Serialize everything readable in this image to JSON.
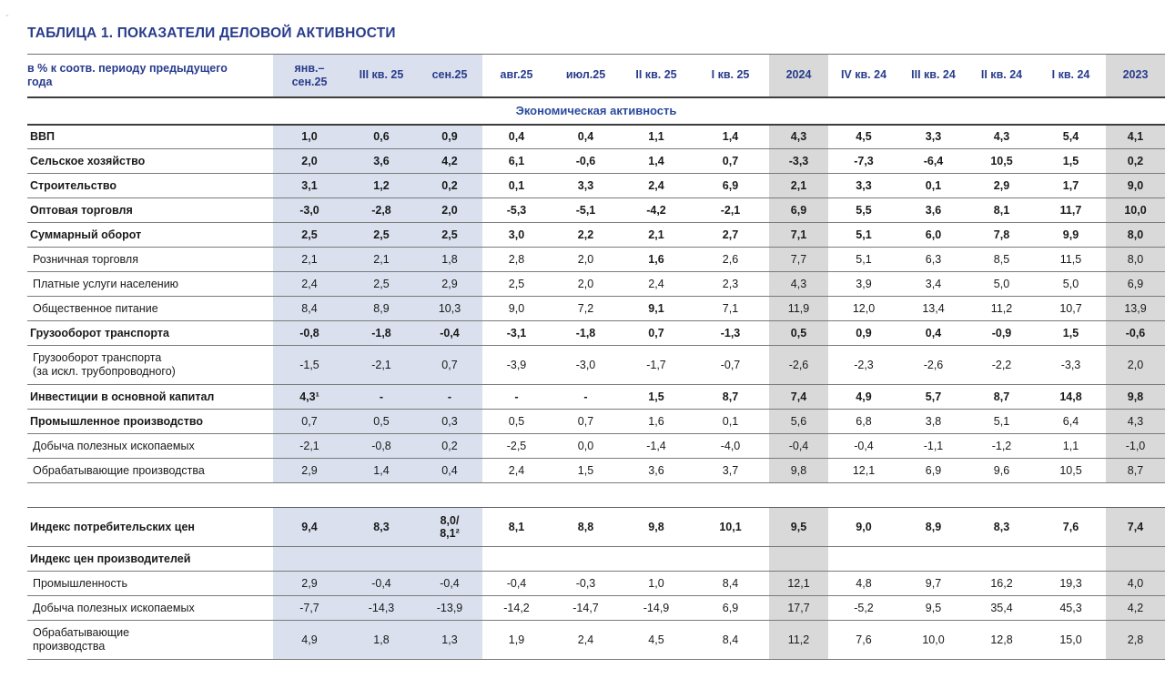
{
  "page": {
    "title": "ТАБЛИЦА 1. ПОКАЗАТЕЛИ ДЕЛОВОЙ АКТИВНОСТИ",
    "corner_mark": "-"
  },
  "table": {
    "row_header_label": "в % к соотв. периоду предыдущего\nгода",
    "columns": [
      {
        "label": "янв.–\nсен.25",
        "highlight": "blue"
      },
      {
        "label": "III кв. 25",
        "highlight": "blue"
      },
      {
        "label": "сен.25",
        "highlight": "blue"
      },
      {
        "label": "авг.25",
        "highlight": "none"
      },
      {
        "label": "июл.25",
        "highlight": "none"
      },
      {
        "label": "II кв. 25",
        "highlight": "none"
      },
      {
        "label": "I кв. 25",
        "highlight": "none"
      },
      {
        "label": "2024",
        "highlight": "grey"
      },
      {
        "label": "IV кв. 24",
        "highlight": "none"
      },
      {
        "label": "III кв. 24",
        "highlight": "none"
      },
      {
        "label": "II кв. 24",
        "highlight": "none"
      },
      {
        "label": "I кв. 24",
        "highlight": "none"
      },
      {
        "label": "2023",
        "highlight": "grey"
      }
    ],
    "sections": [
      {
        "header": "Экономическая активность",
        "rows": [
          {
            "label": "ВВП",
            "label_bold": true,
            "values_bold": true,
            "values": [
              "1,0",
              "0,6",
              "0,9",
              "0,4",
              "0,4",
              "1,1",
              "1,4",
              "4,3",
              "4,5",
              "3,3",
              "4,3",
              "5,4",
              "4,1"
            ]
          },
          {
            "label": "Сельское хозяйство",
            "label_bold": true,
            "values_bold": true,
            "values": [
              "2,0",
              "3,6",
              "4,2",
              "6,1",
              "-0,6",
              "1,4",
              "0,7",
              "-3,3",
              "-7,3",
              "-6,4",
              "10,5",
              "1,5",
              "0,2"
            ]
          },
          {
            "label": "Строительство",
            "label_bold": true,
            "values_bold": true,
            "values": [
              "3,1",
              "1,2",
              "0,2",
              "0,1",
              "3,3",
              "2,4",
              "6,9",
              "2,1",
              "3,3",
              "0,1",
              "2,9",
              "1,7",
              "9,0"
            ]
          },
          {
            "label": "Оптовая торговля",
            "label_bold": true,
            "values_bold": true,
            "values": [
              "-3,0",
              "-2,8",
              "2,0",
              "-5,3",
              "-5,1",
              "-4,2",
              "-2,1",
              "6,9",
              "5,5",
              "3,6",
              "8,1",
              "11,7",
              "10,0"
            ]
          },
          {
            "label": "Суммарный оборот",
            "label_bold": true,
            "values_bold": true,
            "values": [
              "2,5",
              "2,5",
              "2,5",
              "3,0",
              "2,2",
              "2,1",
              "2,7",
              "7,1",
              "5,1",
              "6,0",
              "7,8",
              "9,9",
              "8,0"
            ]
          },
          {
            "label": "Розничная торговля",
            "label_bold": false,
            "values_bold": false,
            "bold_cells": [
              5
            ],
            "values": [
              "2,1",
              "2,1",
              "1,8",
              "2,8",
              "2,0",
              "1,6",
              "2,6",
              "7,7",
              "5,1",
              "6,3",
              "8,5",
              "11,5",
              "8,0"
            ]
          },
          {
            "label": "Платные услуги населению",
            "label_bold": false,
            "values_bold": false,
            "values": [
              "2,4",
              "2,5",
              "2,9",
              "2,5",
              "2,0",
              "2,4",
              "2,3",
              "4,3",
              "3,9",
              "3,4",
              "5,0",
              "5,0",
              "6,9"
            ]
          },
          {
            "label": "Общественное питание",
            "label_bold": false,
            "values_bold": false,
            "bold_cells": [
              5
            ],
            "values": [
              "8,4",
              "8,9",
              "10,3",
              "9,0",
              "7,2",
              "9,1",
              "7,1",
              "11,9",
              "12,0",
              "13,4",
              "11,2",
              "10,7",
              "13,9"
            ]
          },
          {
            "label": "Грузооборот транспорта",
            "label_bold": true,
            "values_bold": true,
            "values": [
              "-0,8",
              "-1,8",
              "-0,4",
              "-3,1",
              "-1,8",
              "0,7",
              "-1,3",
              "0,5",
              "0,9",
              "0,4",
              "-0,9",
              "1,5",
              "-0,6"
            ]
          },
          {
            "label": "Грузооборот транспорта\n(за искл. трубопроводного)",
            "label_bold": false,
            "values_bold": false,
            "tall": true,
            "values": [
              "-1,5",
              "-2,1",
              "0,7",
              "-3,9",
              "-3,0",
              "-1,7",
              "-0,7",
              "-2,6",
              "-2,3",
              "-2,6",
              "-2,2",
              "-3,3",
              "2,0"
            ]
          },
          {
            "label": "Инвестиции в основной капитал",
            "label_bold": true,
            "values_bold": true,
            "values": [
              "4,3¹",
              "-",
              "-",
              "-",
              "-",
              "1,5",
              "8,7",
              "7,4",
              "4,9",
              "5,7",
              "8,7",
              "14,8",
              "9,8"
            ]
          },
          {
            "label": "Промышленное производство",
            "label_bold": true,
            "values_bold": false,
            "values": [
              "0,7",
              "0,5",
              "0,3",
              "0,5",
              "0,7",
              "1,6",
              "0,1",
              "5,6",
              "6,8",
              "3,8",
              "5,1",
              "6,4",
              "4,3"
            ]
          },
          {
            "label": "Добыча полезных ископаемых",
            "label_bold": false,
            "values_bold": false,
            "values": [
              "-2,1",
              "-0,8",
              "0,2",
              "-2,5",
              "0,0",
              "-1,4",
              "-4,0",
              "-0,4",
              "-0,4",
              "-1,1",
              "-1,2",
              "1,1",
              "-1,0"
            ]
          },
          {
            "label": "Обрабатывающие производства",
            "label_bold": false,
            "values_bold": false,
            "values": [
              "2,9",
              "1,4",
              "0,4",
              "2,4",
              "1,5",
              "3,6",
              "3,7",
              "9,8",
              "12,1",
              "6,9",
              "9,6",
              "10,5",
              "8,7"
            ]
          }
        ]
      },
      {
        "header": null,
        "rows": [
          {
            "label": "Индекс потребительских цен",
            "label_bold": true,
            "values_bold": true,
            "tall": true,
            "values": [
              "9,4",
              "8,3",
              "8,0/\n8,1²",
              "8,1",
              "8,8",
              "9,8",
              "10,1",
              "9,5",
              "9,0",
              "8,9",
              "8,3",
              "7,6",
              "7,4"
            ]
          },
          {
            "label": "Индекс цен производителей",
            "label_bold": true,
            "values_bold": false,
            "values": [
              "",
              "",
              "",
              "",
              "",
              "",
              "",
              "",
              "",
              "",
              "",
              "",
              ""
            ]
          },
          {
            "label": "Промышленность",
            "label_bold": false,
            "values_bold": false,
            "values": [
              "2,9",
              "-0,4",
              "-0,4",
              "-0,4",
              "-0,3",
              "1,0",
              "8,4",
              "12,1",
              "4,8",
              "9,7",
              "16,2",
              "19,3",
              "4,0"
            ]
          },
          {
            "label": "Добыча полезных ископаемых",
            "label_bold": false,
            "values_bold": false,
            "values": [
              "-7,7",
              "-14,3",
              "-13,9",
              "-14,2",
              "-14,7",
              "-14,9",
              "6,9",
              "17,7",
              "-5,2",
              "9,5",
              "35,4",
              "45,3",
              "4,2"
            ]
          },
          {
            "label": "Обрабатывающие\nпроизводства",
            "label_bold": false,
            "values_bold": false,
            "tall": true,
            "values": [
              "4,9",
              "1,8",
              "1,3",
              "1,9",
              "2,4",
              "4,5",
              "8,4",
              "11,2",
              "7,6",
              "10,0",
              "12,8",
              "15,0",
              "2,8"
            ]
          }
        ]
      }
    ]
  }
}
